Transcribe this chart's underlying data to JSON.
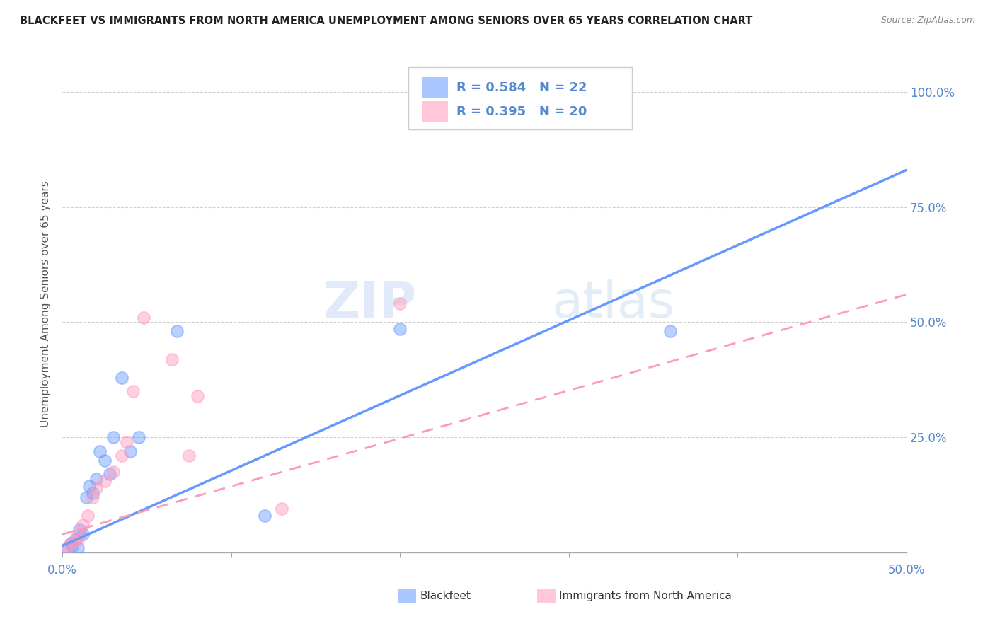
{
  "title": "BLACKFEET VS IMMIGRANTS FROM NORTH AMERICA UNEMPLOYMENT AMONG SENIORS OVER 65 YEARS CORRELATION CHART",
  "source": "Source: ZipAtlas.com",
  "ylabel": "Unemployment Among Seniors over 65 years",
  "xlim": [
    0.0,
    0.5
  ],
  "ylim": [
    0.0,
    1.08
  ],
  "legend_labels": [
    "Blackfeet",
    "Immigrants from North America"
  ],
  "blackfeet_R": "0.584",
  "blackfeet_N": "22",
  "immigrants_R": "0.395",
  "immigrants_N": "20",
  "blackfeet_color": "#6699ff",
  "immigrants_color": "#ff99bb",
  "blackfeet_scatter_x": [
    0.003,
    0.005,
    0.006,
    0.008,
    0.009,
    0.01,
    0.012,
    0.014,
    0.016,
    0.018,
    0.02,
    0.022,
    0.025,
    0.028,
    0.03,
    0.035,
    0.04,
    0.045,
    0.068,
    0.12,
    0.2,
    0.36
  ],
  "blackfeet_scatter_y": [
    0.01,
    0.02,
    0.015,
    0.03,
    0.01,
    0.05,
    0.04,
    0.12,
    0.145,
    0.13,
    0.16,
    0.22,
    0.2,
    0.17,
    0.25,
    0.38,
    0.22,
    0.25,
    0.48,
    0.08,
    0.485,
    0.48
  ],
  "immigrants_scatter_x": [
    0.003,
    0.005,
    0.007,
    0.009,
    0.01,
    0.012,
    0.015,
    0.018,
    0.02,
    0.025,
    0.03,
    0.035,
    0.038,
    0.042,
    0.048,
    0.065,
    0.075,
    0.08,
    0.13,
    0.2
  ],
  "immigrants_scatter_y": [
    0.01,
    0.02,
    0.025,
    0.03,
    0.04,
    0.06,
    0.08,
    0.12,
    0.14,
    0.155,
    0.175,
    0.21,
    0.24,
    0.35,
    0.51,
    0.42,
    0.21,
    0.34,
    0.095,
    0.54
  ],
  "blackfeet_line_x": [
    0.0,
    0.5
  ],
  "blackfeet_line_y": [
    0.015,
    0.83
  ],
  "immigrants_line_x": [
    0.0,
    0.5
  ],
  "immigrants_line_y": [
    0.04,
    0.56
  ],
  "watermark_zip": "ZIP",
  "watermark_atlas": "atlas",
  "grid_color": "#d0d0d0",
  "background_color": "#ffffff",
  "scatter_size": 150,
  "scatter_alpha": 0.45,
  "scatter_linewidth": 1.5,
  "xtick_positions": [
    0.0,
    0.1,
    0.2,
    0.3,
    0.4,
    0.5
  ],
  "ytick_positions": [
    0.0,
    0.25,
    0.5,
    0.75,
    1.0
  ]
}
